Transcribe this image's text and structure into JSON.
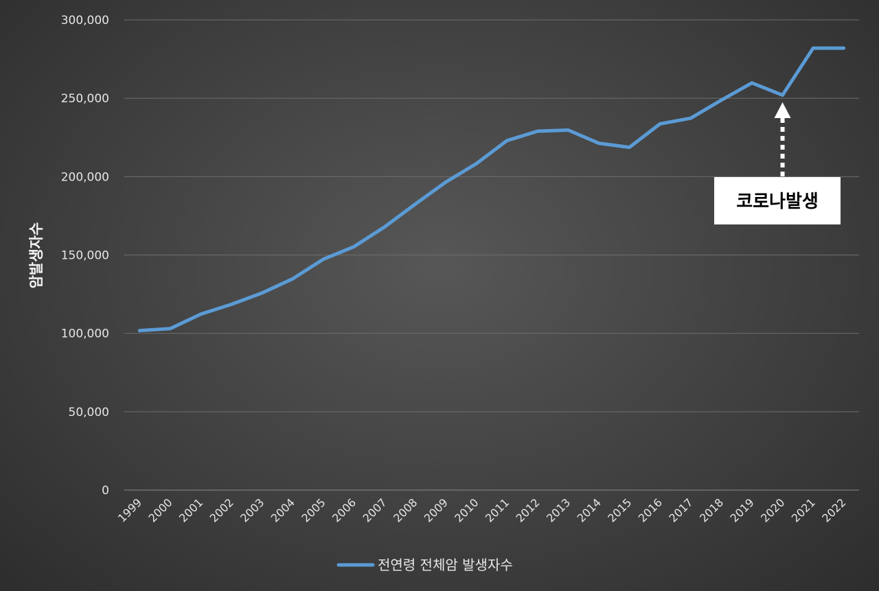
{
  "chart_data": {
    "type": "line",
    "title": "",
    "xlabel": "",
    "ylabel": "암발생자수",
    "ylim": [
      0,
      300000
    ],
    "yticks": [
      0,
      50000,
      100000,
      150000,
      200000,
      250000,
      300000
    ],
    "ytick_labels": [
      "0",
      "50,000",
      "100,000",
      "150,000",
      "200,000",
      "250,000",
      "300,000"
    ],
    "grid": true,
    "legend_position": "bottom",
    "categories": [
      "1999",
      "2000",
      "2001",
      "2002",
      "2003",
      "2004",
      "2005",
      "2006",
      "2007",
      "2008",
      "2009",
      "2010",
      "2011",
      "2012",
      "2013",
      "2014",
      "2015",
      "2016",
      "2017",
      "2018",
      "2019",
      "2020",
      "2021",
      "2022"
    ],
    "series": [
      {
        "name": "전연령 전체암 발생자수",
        "color": "#5b9bd5",
        "values": [
          101800,
          103000,
          112300,
          118500,
          125800,
          134800,
          147300,
          155300,
          167900,
          182400,
          196500,
          208300,
          223000,
          229000,
          229700,
          221300,
          218700,
          233700,
          237300,
          248800,
          259800,
          252000,
          282000,
          282000
        ]
      }
    ],
    "annotations": [
      {
        "text": "코로나발생",
        "target_category": "2020",
        "arrow": "dashed-up"
      }
    ]
  }
}
